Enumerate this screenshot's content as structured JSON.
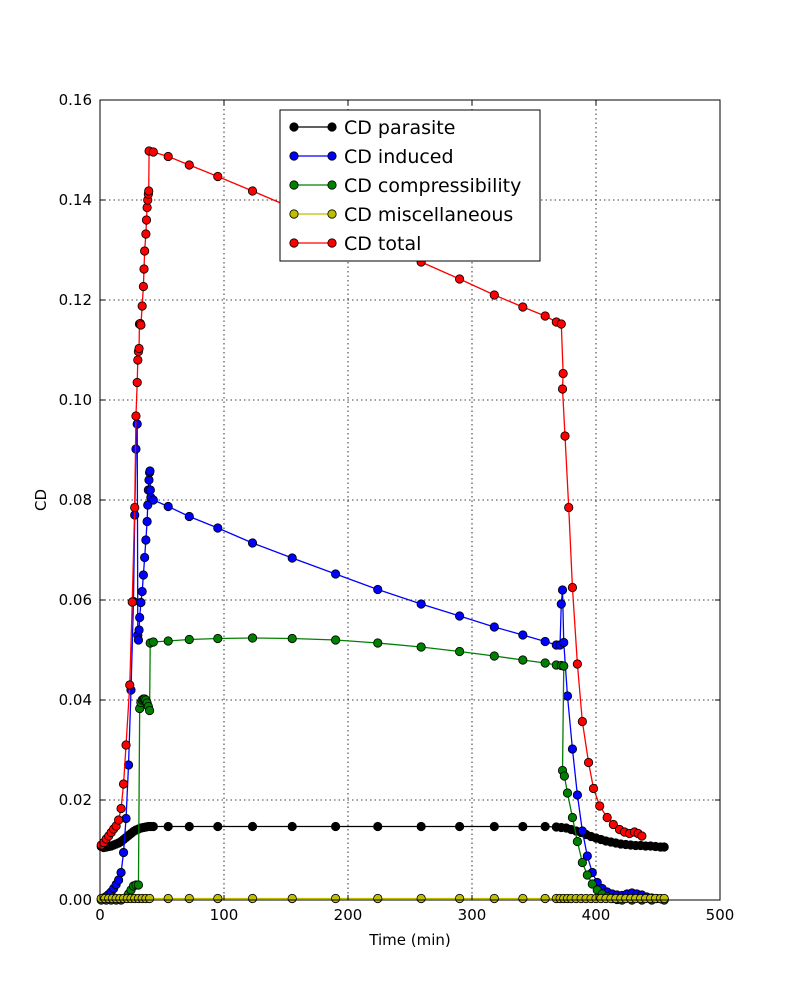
{
  "chart_data": {
    "type": "line",
    "title": "",
    "xlabel": "Time (min)",
    "ylabel": "CD",
    "xlim": [
      0,
      500
    ],
    "ylim": [
      0,
      0.16
    ],
    "xticks": [
      0,
      100,
      200,
      300,
      400,
      500
    ],
    "xtick_labels": [
      "0",
      "100",
      "200",
      "300",
      "400",
      "500"
    ],
    "yticks": [
      0,
      0.02,
      0.04,
      0.06,
      0.08,
      0.1,
      0.12,
      0.14,
      0.16
    ],
    "ytick_labels": [
      "0.00",
      "0.02",
      "0.04",
      "0.06",
      "0.08",
      "0.10",
      "0.12",
      "0.14",
      "0.16"
    ],
    "grid": true,
    "legend_position": "top-center",
    "series": [
      {
        "name": "CD parasite",
        "color": "#000000",
        "points": [
          [
            1,
            0.0107
          ],
          [
            3,
            0.0105
          ],
          [
            5,
            0.0106
          ],
          [
            7,
            0.0107
          ],
          [
            9,
            0.0108
          ],
          [
            11,
            0.011
          ],
          [
            13,
            0.0112
          ],
          [
            15,
            0.0114
          ],
          [
            17,
            0.0117
          ],
          [
            19,
            0.0121
          ],
          [
            21,
            0.0125
          ],
          [
            23,
            0.0129
          ],
          [
            25,
            0.0133
          ],
          [
            27,
            0.0137
          ],
          [
            29,
            0.014
          ],
          [
            31,
            0.0142
          ],
          [
            33,
            0.0144
          ],
          [
            35,
            0.0145
          ],
          [
            37,
            0.0146
          ],
          [
            39,
            0.0147
          ],
          [
            41,
            0.0147
          ],
          [
            43,
            0.0147
          ],
          [
            55,
            0.0147
          ],
          [
            72,
            0.0147
          ],
          [
            95,
            0.0147
          ],
          [
            123,
            0.0147
          ],
          [
            155,
            0.0147
          ],
          [
            190,
            0.0147
          ],
          [
            224,
            0.0147
          ],
          [
            259,
            0.0147
          ],
          [
            290,
            0.0147
          ],
          [
            318,
            0.0147
          ],
          [
            341,
            0.0147
          ],
          [
            359,
            0.0147
          ],
          [
            368,
            0.0146
          ],
          [
            372,
            0.0145
          ],
          [
            376,
            0.0144
          ],
          [
            380,
            0.0141
          ],
          [
            384,
            0.0138
          ],
          [
            388,
            0.0135
          ],
          [
            392,
            0.0131
          ],
          [
            396,
            0.0127
          ],
          [
            400,
            0.0124
          ],
          [
            404,
            0.0121
          ],
          [
            408,
            0.0118
          ],
          [
            412,
            0.0116
          ],
          [
            416,
            0.0114
          ],
          [
            420,
            0.0112
          ],
          [
            424,
            0.0111
          ],
          [
            428,
            0.011
          ],
          [
            432,
            0.0109
          ],
          [
            436,
            0.0109
          ],
          [
            440,
            0.0108
          ],
          [
            444,
            0.0108
          ],
          [
            448,
            0.0107
          ],
          [
            452,
            0.0106
          ],
          [
            455,
            0.0106
          ]
        ]
      },
      {
        "name": "CD induced",
        "color": "#0000ff",
        "points": [
          [
            1,
            0.0002
          ],
          [
            3,
            0.0004
          ],
          [
            5,
            0.0007
          ],
          [
            7,
            0.0011
          ],
          [
            9,
            0.0016
          ],
          [
            11,
            0.0023
          ],
          [
            13,
            0.0031
          ],
          [
            15,
            0.004
          ],
          [
            17,
            0.0055
          ],
          [
            19,
            0.0095
          ],
          [
            21,
            0.0163
          ],
          [
            23,
            0.027
          ],
          [
            25,
            0.042
          ],
          [
            27,
            0.0597
          ],
          [
            28,
            0.077
          ],
          [
            29,
            0.0902
          ],
          [
            30,
            0.0952
          ],
          [
            30.5,
            0.053
          ],
          [
            31,
            0.052
          ],
          [
            31.5,
            0.054
          ],
          [
            32,
            0.0565
          ],
          [
            33,
            0.0595
          ],
          [
            34,
            0.0617
          ],
          [
            35,
            0.065
          ],
          [
            36,
            0.0685
          ],
          [
            37,
            0.072
          ],
          [
            38,
            0.0757
          ],
          [
            38.5,
            0.079
          ],
          [
            39,
            0.082
          ],
          [
            39.5,
            0.084
          ],
          [
            40,
            0.0855
          ],
          [
            40.3,
            0.0858
          ],
          [
            40.6,
            0.082
          ],
          [
            41,
            0.0805
          ],
          [
            43,
            0.08
          ],
          [
            55,
            0.0787
          ],
          [
            72,
            0.0767
          ],
          [
            95,
            0.0744
          ],
          [
            123,
            0.0714
          ],
          [
            155,
            0.0684
          ],
          [
            190,
            0.0652
          ],
          [
            224,
            0.0621
          ],
          [
            259,
            0.0592
          ],
          [
            290,
            0.0568
          ],
          [
            318,
            0.0546
          ],
          [
            341,
            0.053
          ],
          [
            359,
            0.0517
          ],
          [
            368,
            0.051
          ],
          [
            371,
            0.051
          ],
          [
            372,
            0.0592
          ],
          [
            373,
            0.062
          ],
          [
            374,
            0.0515
          ],
          [
            377,
            0.0408
          ],
          [
            381,
            0.0302
          ],
          [
            385,
            0.021
          ],
          [
            389,
            0.0138
          ],
          [
            393,
            0.0088
          ],
          [
            397,
            0.0055
          ],
          [
            401,
            0.0035
          ],
          [
            405,
            0.0023
          ],
          [
            409,
            0.0016
          ],
          [
            413,
            0.0012
          ],
          [
            417,
            0.001
          ],
          [
            421,
            0.0009
          ],
          [
            425,
            0.0012
          ],
          [
            429,
            0.0014
          ],
          [
            433,
            0.0012
          ],
          [
            437,
            0.001
          ],
          [
            441,
            0.0006
          ],
          [
            445,
            0.0004
          ],
          [
            449,
            0.0003
          ],
          [
            453,
            0.0002
          ],
          [
            455,
            0.0002
          ]
        ]
      },
      {
        "name": "CD compressibility",
        "color": "#008000",
        "points": [
          [
            1,
            0
          ],
          [
            5,
            0
          ],
          [
            9,
            0
          ],
          [
            13,
            0
          ],
          [
            17,
            0
          ],
          [
            21,
            0.0005
          ],
          [
            23,
            0.0012
          ],
          [
            25,
            0.002
          ],
          [
            27,
            0.0028
          ],
          [
            29,
            0.003
          ],
          [
            31,
            0.003
          ],
          [
            32,
            0.0383
          ],
          [
            33,
            0.0395
          ],
          [
            34,
            0.04
          ],
          [
            35,
            0.0402
          ],
          [
            36,
            0.0402
          ],
          [
            37,
            0.04
          ],
          [
            38,
            0.0394
          ],
          [
            39,
            0.0387
          ],
          [
            40,
            0.0379
          ],
          [
            40.5,
            0.0514
          ],
          [
            43,
            0.0516
          ],
          [
            55,
            0.0518
          ],
          [
            72,
            0.0521
          ],
          [
            95,
            0.0523
          ],
          [
            123,
            0.0524
          ],
          [
            155,
            0.0523
          ],
          [
            190,
            0.052
          ],
          [
            224,
            0.0514
          ],
          [
            259,
            0.0506
          ],
          [
            290,
            0.0497
          ],
          [
            318,
            0.0488
          ],
          [
            341,
            0.048
          ],
          [
            359,
            0.0474
          ],
          [
            368,
            0.047
          ],
          [
            372,
            0.0469
          ],
          [
            374,
            0.0468
          ],
          [
            373,
            0.0259
          ],
          [
            374.5,
            0.0248
          ],
          [
            377,
            0.0214
          ],
          [
            381,
            0.0165
          ],
          [
            385,
            0.0117
          ],
          [
            389,
            0.0075
          ],
          [
            393,
            0.005
          ],
          [
            397,
            0.0032
          ],
          [
            401,
            0.002
          ],
          [
            405,
            0.0012
          ],
          [
            409,
            0.0006
          ],
          [
            413,
            0.0003
          ],
          [
            417,
            0.0001
          ],
          [
            421,
            0
          ],
          [
            429,
            0
          ],
          [
            437,
            0
          ],
          [
            445,
            0
          ],
          [
            455,
            0
          ]
        ]
      },
      {
        "name": "CD miscellaneous",
        "color": "#bfbf00",
        "points": [
          [
            1,
            0.0003
          ],
          [
            4,
            0.0003
          ],
          [
            7,
            0.0003
          ],
          [
            10,
            0.0003
          ],
          [
            13,
            0.0003
          ],
          [
            16,
            0.0003
          ],
          [
            19,
            0.0003
          ],
          [
            22,
            0.0003
          ],
          [
            25,
            0.0003
          ],
          [
            28,
            0.0003
          ],
          [
            31,
            0.0003
          ],
          [
            34,
            0.0003
          ],
          [
            37,
            0.0003
          ],
          [
            40,
            0.0003
          ],
          [
            55,
            0.0003
          ],
          [
            72,
            0.0003
          ],
          [
            95,
            0.0003
          ],
          [
            123,
            0.0003
          ],
          [
            155,
            0.0003
          ],
          [
            190,
            0.0003
          ],
          [
            224,
            0.0003
          ],
          [
            259,
            0.0003
          ],
          [
            290,
            0.0003
          ],
          [
            318,
            0.0003
          ],
          [
            341,
            0.0003
          ],
          [
            359,
            0.0003
          ],
          [
            368,
            0.0003
          ],
          [
            371,
            0.0003
          ],
          [
            374,
            0.0003
          ],
          [
            377,
            0.0003
          ],
          [
            380,
            0.0003
          ],
          [
            384,
            0.0003
          ],
          [
            388,
            0.0003
          ],
          [
            392,
            0.0003
          ],
          [
            396,
            0.0003
          ],
          [
            400,
            0.0003
          ],
          [
            404,
            0.0003
          ],
          [
            408,
            0.0003
          ],
          [
            412,
            0.0003
          ],
          [
            416,
            0.0003
          ],
          [
            420,
            0.0003
          ],
          [
            424,
            0.0003
          ],
          [
            428,
            0.0003
          ],
          [
            432,
            0.0003
          ],
          [
            436,
            0.0003
          ],
          [
            440,
            0.0003
          ],
          [
            444,
            0.0003
          ],
          [
            448,
            0.0003
          ],
          [
            452,
            0.0003
          ],
          [
            455,
            0.0003
          ]
        ]
      },
      {
        "name": "CD total",
        "color": "#ff0000",
        "points": [
          [
            1,
            0.011
          ],
          [
            3,
            0.0115
          ],
          [
            5,
            0.0122
          ],
          [
            7,
            0.0128
          ],
          [
            9,
            0.0135
          ],
          [
            11,
            0.0142
          ],
          [
            13,
            0.0148
          ],
          [
            15,
            0.016
          ],
          [
            17,
            0.0183
          ],
          [
            19,
            0.0232
          ],
          [
            21,
            0.031
          ],
          [
            24,
            0.043
          ],
          [
            26,
            0.0596
          ],
          [
            28,
            0.0785
          ],
          [
            29,
            0.0968
          ],
          [
            30,
            0.1035
          ],
          [
            30.5,
            0.108
          ],
          [
            31,
            0.1097
          ],
          [
            31.5,
            0.1103
          ],
          [
            31.8,
            0.1152
          ],
          [
            32.5,
            0.1153
          ],
          [
            33,
            0.115
          ],
          [
            34,
            0.1188
          ],
          [
            35,
            0.1227
          ],
          [
            35.5,
            0.1262
          ],
          [
            36,
            0.1298
          ],
          [
            37,
            0.1332
          ],
          [
            37.5,
            0.136
          ],
          [
            38,
            0.1385
          ],
          [
            38.5,
            0.14
          ],
          [
            39,
            0.1412
          ],
          [
            39.3,
            0.1418
          ],
          [
            39.6,
            0.1498
          ],
          [
            43,
            0.1496
          ],
          [
            55,
            0.1487
          ],
          [
            72,
            0.147
          ],
          [
            95,
            0.1447
          ],
          [
            123,
            0.1418
          ],
          [
            155,
            0.1384
          ],
          [
            190,
            0.1346
          ],
          [
            224,
            0.1311
          ],
          [
            259,
            0.1276
          ],
          [
            290,
            0.1242
          ],
          [
            318,
            0.121
          ],
          [
            341,
            0.1186
          ],
          [
            359,
            0.1168
          ],
          [
            368,
            0.1156
          ],
          [
            372,
            0.1152
          ],
          [
            373.5,
            0.1053
          ],
          [
            373,
            0.1022
          ],
          [
            375,
            0.0928
          ],
          [
            378,
            0.0785
          ],
          [
            381,
            0.0625
          ],
          [
            385,
            0.0472
          ],
          [
            389,
            0.0357
          ],
          [
            394,
            0.0275
          ],
          [
            398,
            0.0223
          ],
          [
            403,
            0.0188
          ],
          [
            409,
            0.0165
          ],
          [
            414,
            0.0151
          ],
          [
            419,
            0.0141
          ],
          [
            423,
            0.0136
          ],
          [
            427,
            0.0133
          ],
          [
            431,
            0.0136
          ],
          [
            434,
            0.0133
          ],
          [
            437,
            0.0128
          ]
        ]
      }
    ]
  }
}
